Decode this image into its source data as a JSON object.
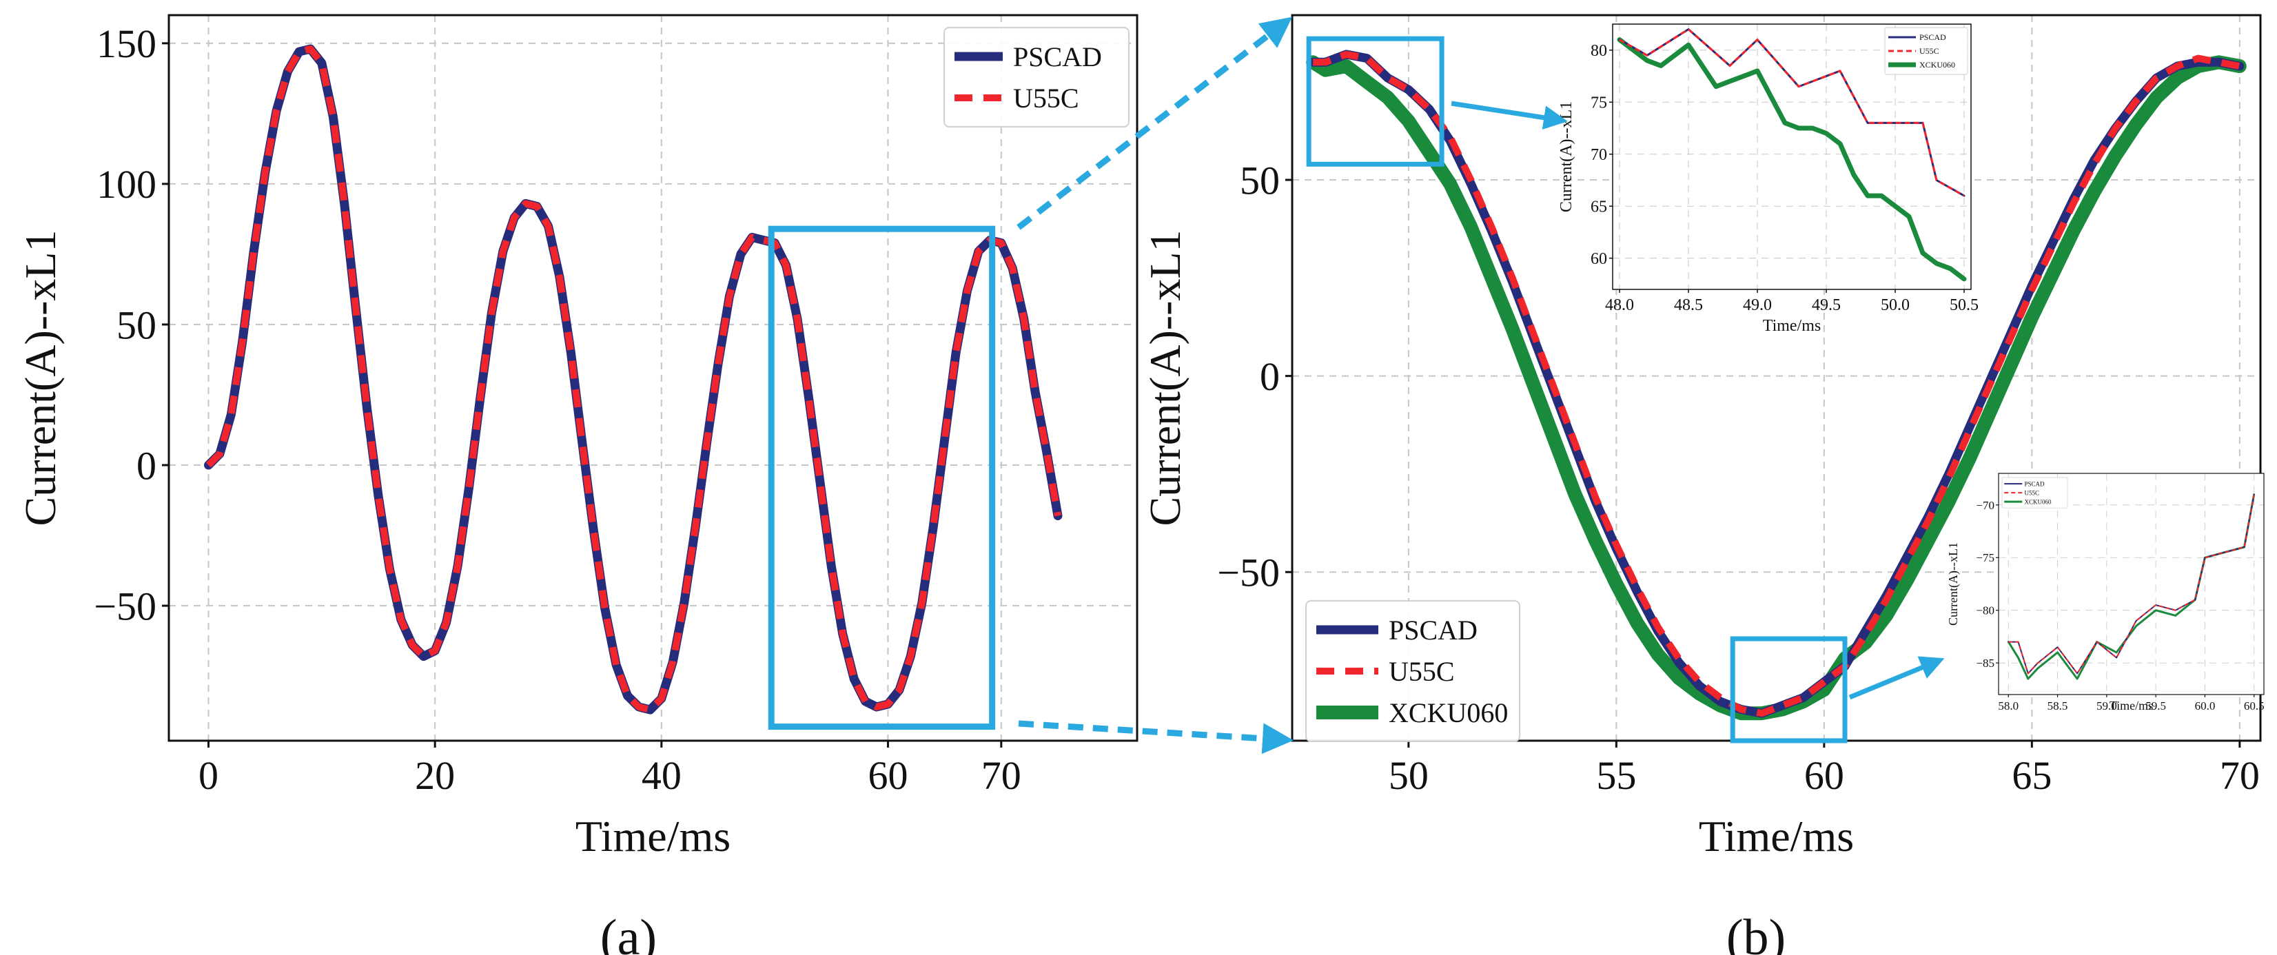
{
  "colors": {
    "pscad": "#262c7c",
    "u55c": "#f0262c",
    "xcku060": "#1a8a3c",
    "zoom": "#2aa9e0",
    "grid": "#c8c8c8"
  },
  "panels": {
    "a": {
      "caption": "(a)"
    },
    "b": {
      "caption": "(b)"
    }
  },
  "chart_data": [
    {
      "id": "a",
      "type": "line",
      "title": "",
      "xlabel": "Time/ms",
      "ylabel": "Current(A)--xL1",
      "xlim": [
        -3.5,
        82
      ],
      "ylim": [
        -98,
        160
      ],
      "xticks": [
        0,
        20,
        40,
        60,
        70
      ],
      "xtick_labels": [
        "0",
        "20",
        "40",
        "60",
        "70"
      ],
      "yticks": [
        -50,
        0,
        50,
        100,
        150
      ],
      "ytick_labels": [
        "−50",
        "0",
        "50",
        "100",
        "150"
      ],
      "grid": true,
      "legend": {
        "position": "top-right",
        "entries": [
          "PSCAD",
          "U55C"
        ]
      },
      "series": [
        {
          "name": "PSCAD",
          "style": "solid",
          "x": [
            0,
            1,
            2,
            3,
            4,
            5,
            6,
            7,
            8,
            9,
            10,
            11,
            12,
            13,
            14,
            15,
            16,
            17,
            18,
            19,
            20,
            21,
            22,
            23,
            24,
            25,
            26,
            27,
            28,
            29,
            30,
            31,
            32,
            33,
            34,
            35,
            36,
            37,
            38,
            39,
            40,
            41,
            42,
            43,
            44,
            45,
            46,
            47,
            48,
            49,
            50,
            51,
            52,
            53,
            54,
            55,
            56,
            57,
            58,
            59,
            60,
            61,
            62,
            63,
            64,
            65,
            66,
            67,
            68,
            69,
            70,
            71,
            72,
            73,
            74,
            75
          ],
          "y": [
            0,
            4,
            18,
            44,
            76,
            104,
            126,
            140,
            147,
            148,
            143,
            124,
            93,
            56,
            20,
            -11,
            -37,
            -55,
            -64,
            -68,
            -66,
            -56,
            -36,
            -8,
            24,
            54,
            76,
            88,
            93,
            92,
            85,
            67,
            40,
            8,
            -23,
            -51,
            -71,
            -82,
            -86,
            -87,
            -83,
            -70,
            -49,
            -22,
            8,
            36,
            60,
            75,
            81,
            80,
            79,
            71,
            52,
            24,
            -6,
            -36,
            -60,
            -76,
            -84,
            -86,
            -85,
            -80,
            -68,
            -49,
            -22,
            9,
            40,
            62,
            76,
            80,
            79,
            70,
            52,
            26,
            5,
            -18
          ]
        },
        {
          "name": "U55C",
          "style": "dashed",
          "x": [
            0,
            1,
            2,
            3,
            4,
            5,
            6,
            7,
            8,
            9,
            10,
            11,
            12,
            13,
            14,
            15,
            16,
            17,
            18,
            19,
            20,
            21,
            22,
            23,
            24,
            25,
            26,
            27,
            28,
            29,
            30,
            31,
            32,
            33,
            34,
            35,
            36,
            37,
            38,
            39,
            40,
            41,
            42,
            43,
            44,
            45,
            46,
            47,
            48,
            49,
            50,
            51,
            52,
            53,
            54,
            55,
            56,
            57,
            58,
            59,
            60,
            61,
            62,
            63,
            64,
            65,
            66,
            67,
            68,
            69,
            70,
            71,
            72,
            73,
            74,
            75
          ],
          "y": [
            0,
            4,
            18,
            44,
            76,
            104,
            126,
            140,
            147,
            148,
            143,
            124,
            93,
            56,
            20,
            -11,
            -37,
            -55,
            -64,
            -68,
            -66,
            -56,
            -36,
            -8,
            24,
            54,
            76,
            88,
            93,
            92,
            85,
            67,
            40,
            8,
            -23,
            -51,
            -71,
            -82,
            -86,
            -87,
            -83,
            -70,
            -49,
            -22,
            8,
            36,
            60,
            75,
            81,
            80,
            79,
            71,
            52,
            24,
            -6,
            -36,
            -60,
            -76,
            -84,
            -86,
            -85,
            -80,
            -68,
            -49,
            -22,
            9,
            40,
            62,
            76,
            80,
            79,
            70,
            52,
            26,
            5,
            -18
          ]
        }
      ],
      "zoom_box": {
        "x": [
          49.7,
          69.2
        ],
        "y": [
          -93,
          84
        ]
      }
    },
    {
      "id": "b",
      "type": "line",
      "title": "",
      "xlabel": "Time/ms",
      "ylabel": "Current(A)--xL1",
      "xlim": [
        47.2,
        70.5
      ],
      "ylim": [
        -93,
        92
      ],
      "xticks": [
        50,
        55,
        60,
        65,
        70
      ],
      "xtick_labels": [
        "50",
        "55",
        "60",
        "65",
        "70"
      ],
      "yticks": [
        -50,
        0,
        50
      ],
      "ytick_labels": [
        "−50",
        "0",
        "50"
      ],
      "grid": true,
      "legend": {
        "position": "bottom-left",
        "entries": [
          "PSCAD",
          "U55C",
          "XCKU060"
        ]
      },
      "series": [
        {
          "name": "PSCAD",
          "style": "solid",
          "x": [
            47.7,
            48.0,
            48.5,
            49.0,
            49.5,
            50.0,
            50.5,
            51.0,
            51.5,
            52.0,
            52.5,
            53.0,
            53.5,
            54.0,
            54.5,
            55.0,
            55.5,
            56.0,
            56.5,
            57.0,
            57.5,
            58.0,
            58.5,
            59.0,
            59.5,
            60.0,
            60.5,
            61.0,
            61.5,
            62.0,
            62.5,
            63.0,
            63.5,
            64.0,
            64.5,
            65.0,
            65.5,
            66.0,
            66.5,
            67.0,
            67.5,
            68.0,
            68.5,
            69.0,
            69.5,
            70.0
          ],
          "y": [
            80,
            80,
            82,
            81,
            76,
            73,
            68,
            60,
            49,
            37,
            24,
            10,
            -4,
            -18,
            -32,
            -44,
            -55,
            -65,
            -73,
            -79,
            -83,
            -85,
            -86,
            -84,
            -82,
            -78,
            -74,
            -65,
            -56,
            -46,
            -36,
            -25,
            -13,
            -1,
            11,
            23,
            34,
            45,
            55,
            63,
            70,
            76,
            79,
            80,
            80,
            79
          ]
        },
        {
          "name": "U55C",
          "style": "dashed",
          "x": [
            47.7,
            48.0,
            48.5,
            49.0,
            49.5,
            50.0,
            50.5,
            51.0,
            51.5,
            52.0,
            52.5,
            53.0,
            53.5,
            54.0,
            54.5,
            55.0,
            55.5,
            56.0,
            56.5,
            57.0,
            57.5,
            58.0,
            58.5,
            59.0,
            59.5,
            60.0,
            60.5,
            61.0,
            61.5,
            62.0,
            62.5,
            63.0,
            63.5,
            64.0,
            64.5,
            65.0,
            65.5,
            66.0,
            66.5,
            67.0,
            67.5,
            68.0,
            68.5,
            69.0,
            69.5,
            70.0
          ],
          "y": [
            80,
            80,
            82,
            81,
            76,
            73,
            68,
            61,
            50,
            38,
            25,
            11,
            -3,
            -17,
            -31,
            -43,
            -54,
            -64,
            -72,
            -78,
            -82,
            -85,
            -86,
            -84,
            -82,
            -78,
            -74,
            -66,
            -57,
            -47,
            -37,
            -26,
            -14,
            -2,
            10,
            22,
            33,
            44,
            54,
            63,
            70,
            76,
            79,
            81,
            80,
            79
          ]
        },
        {
          "name": "XCKU060",
          "style": "solid",
          "x": [
            47.7,
            48.0,
            48.5,
            49.0,
            49.5,
            50.0,
            50.5,
            51.0,
            51.5,
            52.0,
            52.5,
            53.0,
            53.5,
            54.0,
            54.5,
            55.0,
            55.5,
            56.0,
            56.5,
            57.0,
            57.5,
            58.0,
            58.5,
            59.0,
            59.5,
            60.0,
            60.5,
            61.0,
            61.5,
            62.0,
            62.5,
            63.0,
            63.5,
            64.0,
            64.5,
            65.0,
            65.5,
            66.0,
            66.5,
            67.0,
            67.5,
            68.0,
            68.5,
            69.0,
            69.5,
            70.0
          ],
          "y": [
            80,
            78,
            79,
            75,
            71,
            65,
            57,
            49,
            38,
            25,
            12,
            -2,
            -16,
            -30,
            -42,
            -53,
            -63,
            -71,
            -77,
            -81,
            -84,
            -86,
            -86,
            -85,
            -83,
            -80,
            -72,
            -68,
            -61,
            -52,
            -42,
            -32,
            -21,
            -9,
            3,
            15,
            26,
            37,
            47,
            56,
            64,
            71,
            76,
            79,
            80,
            79
          ]
        }
      ],
      "zoom_boxes": [
        {
          "x": [
            47.6,
            50.8
          ],
          "y": [
            54,
            86
          ]
        },
        {
          "x": [
            57.8,
            60.5
          ],
          "y": [
            -93,
            -67
          ]
        }
      ]
    },
    {
      "id": "b-inset-top",
      "type": "line",
      "xlabel": "Time/ms",
      "ylabel": "Current(A)--xL1",
      "xlim": [
        47.95,
        50.55
      ],
      "ylim": [
        57,
        82.5
      ],
      "xticks": [
        48.0,
        48.5,
        49.0,
        49.5,
        50.0,
        50.5
      ],
      "xtick_labels": [
        "48.0",
        "48.5",
        "49.0",
        "49.5",
        "50.0",
        "50.5"
      ],
      "yticks": [
        60,
        65,
        70,
        75,
        80
      ],
      "ytick_labels": [
        "60",
        "65",
        "70",
        "75",
        "80"
      ],
      "grid": true,
      "legend": {
        "position": "top-right",
        "entries": [
          "PSCAD",
          "U55C",
          "XCKU060"
        ]
      },
      "series": [
        {
          "name": "PSCAD",
          "style": "solid",
          "x": [
            48.0,
            48.2,
            48.5,
            48.8,
            49.0,
            49.3,
            49.6,
            49.8,
            50.2,
            50.3,
            50.5
          ],
          "y": [
            81,
            79.5,
            82,
            78.5,
            81,
            76.5,
            78,
            73,
            73,
            67.5,
            66
          ]
        },
        {
          "name": "U55C",
          "style": "dashed",
          "x": [
            48.0,
            48.2,
            48.5,
            48.8,
            49.0,
            49.3,
            49.6,
            49.8,
            50.2,
            50.3,
            50.5
          ],
          "y": [
            81,
            79.5,
            82,
            78.5,
            81,
            76.5,
            78,
            73,
            73,
            67.5,
            66
          ]
        },
        {
          "name": "XCKU060",
          "style": "solid",
          "x": [
            48.0,
            48.1,
            48.2,
            48.3,
            48.4,
            48.5,
            48.6,
            48.7,
            48.8,
            48.9,
            49.0,
            49.1,
            49.2,
            49.3,
            49.4,
            49.5,
            49.6,
            49.7,
            49.8,
            49.9,
            50.0,
            50.1,
            50.2,
            50.3,
            50.4,
            50.5
          ],
          "y": [
            81,
            80,
            79,
            78.5,
            79.5,
            80.5,
            78.5,
            76.5,
            77,
            77.5,
            78,
            75.5,
            73,
            72.5,
            72.5,
            72,
            71,
            68,
            66,
            66,
            65,
            64,
            60.5,
            59.5,
            59,
            58
          ]
        }
      ]
    },
    {
      "id": "b-inset-bottom",
      "type": "line",
      "xlabel": "Time/ms",
      "ylabel": "Current(A)--xL1",
      "xlim": [
        57.9,
        60.6
      ],
      "ylim": [
        -88,
        -67
      ],
      "xticks": [
        58.0,
        58.5,
        59.0,
        59.5,
        60.0,
        60.5
      ],
      "xtick_labels": [
        "58.0",
        "58.5",
        "59.0",
        "59.5",
        "60.0",
        "60.5"
      ],
      "yticks": [
        -85,
        -80,
        -75,
        -70
      ],
      "ytick_labels": [
        "−85",
        "−80",
        "−75",
        "−70"
      ],
      "grid": true,
      "legend": {
        "position": "top-left",
        "entries": [
          "PSCAD",
          "U55C",
          "XCKU060"
        ]
      },
      "series": [
        {
          "name": "PSCAD",
          "style": "solid",
          "x": [
            58.0,
            58.1,
            58.2,
            58.3,
            58.5,
            58.7,
            58.9,
            59.1,
            59.3,
            59.5,
            59.7,
            59.9,
            60.0,
            60.2,
            60.4,
            60.5
          ],
          "y": [
            -83,
            -83,
            -86,
            -85,
            -83.5,
            -86,
            -83,
            -84.5,
            -81,
            -79.5,
            -80,
            -79,
            -75,
            -74.5,
            -74,
            -69
          ]
        },
        {
          "name": "U55C",
          "style": "dashed",
          "x": [
            58.0,
            58.1,
            58.2,
            58.3,
            58.5,
            58.7,
            58.9,
            59.1,
            59.3,
            59.5,
            59.7,
            59.9,
            60.0,
            60.2,
            60.4,
            60.5
          ],
          "y": [
            -83,
            -83,
            -86,
            -85,
            -83.5,
            -86,
            -83,
            -84.5,
            -81,
            -79.5,
            -80,
            -79,
            -75,
            -74.5,
            -74,
            -69
          ]
        },
        {
          "name": "XCKU060",
          "style": "solid",
          "x": [
            58.0,
            58.1,
            58.2,
            58.3,
            58.5,
            58.7,
            58.9,
            59.1,
            59.3,
            59.5,
            59.7,
            59.9,
            60.0,
            60.2,
            60.4,
            60.5
          ],
          "y": [
            -83,
            -84.5,
            -86.5,
            -85.5,
            -84,
            -86.5,
            -83,
            -84,
            -81.5,
            -80,
            -80.5,
            -79,
            -75,
            -74.5,
            -74,
            -69
          ]
        }
      ]
    }
  ]
}
